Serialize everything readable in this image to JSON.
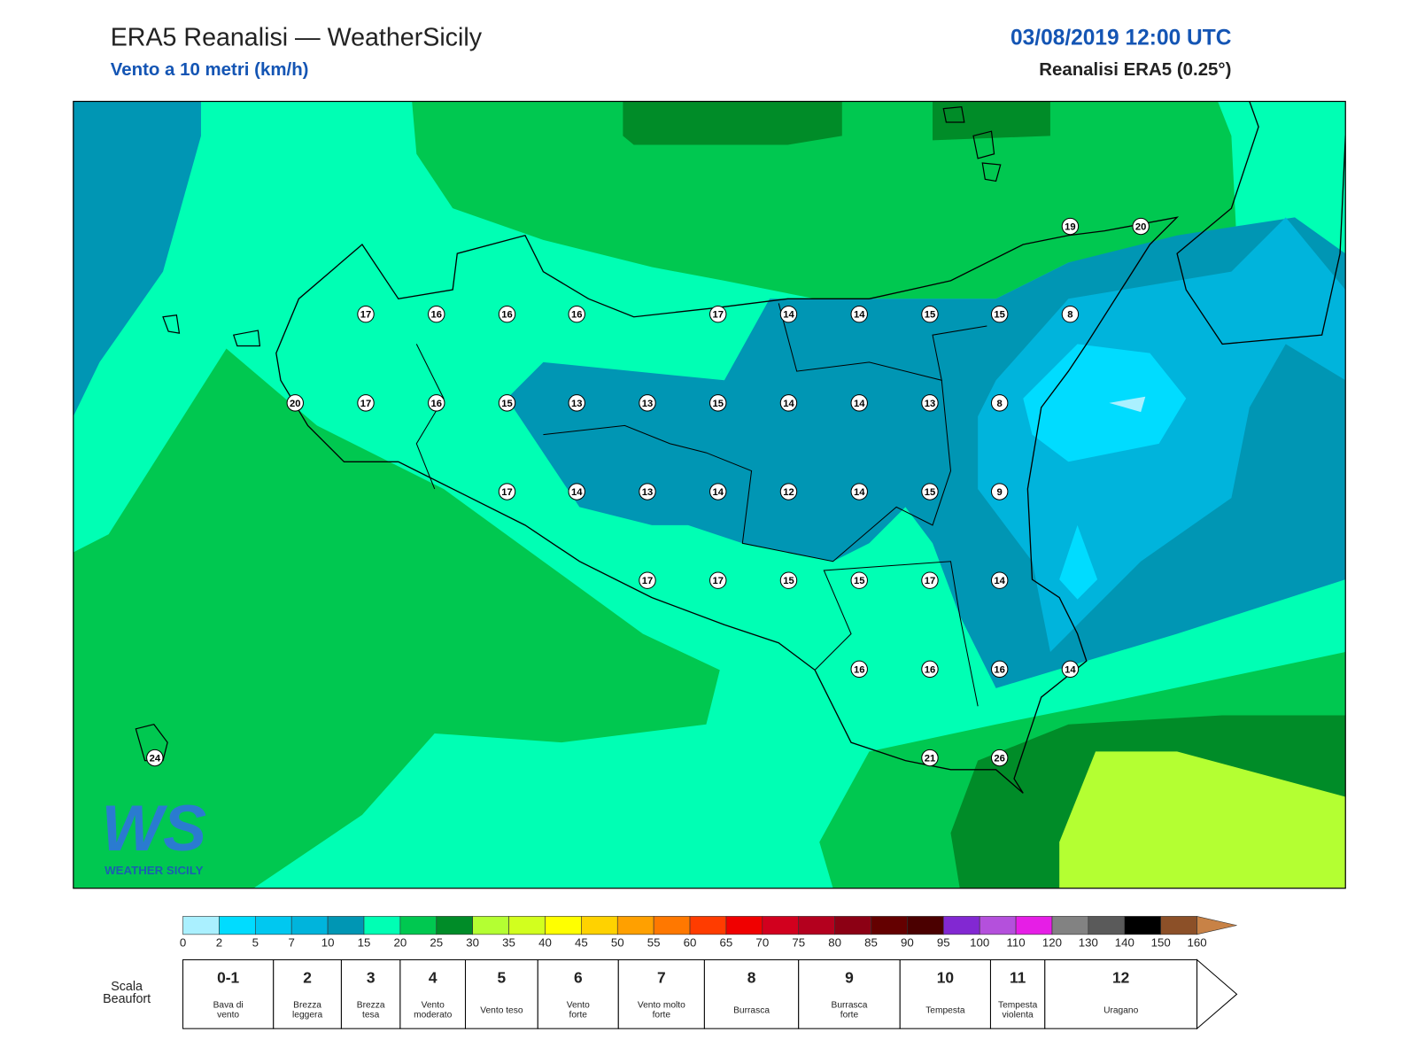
{
  "header": {
    "title": "ERA5 Reanalisi — WeatherSicily",
    "subtitle": "Vento a 10 metri (km/h)",
    "datetime": "03/08/2019 12:00 UTC",
    "source": "Reanalisi ERA5 (0.25°)"
  },
  "stations": [
    17,
    16,
    16,
    16,
    17,
    14,
    14,
    15,
    15,
    8,
    19,
    20,
    20,
    17,
    16,
    15,
    13,
    13,
    15,
    14,
    14,
    13,
    8,
    17,
    14,
    13,
    14,
    12,
    14,
    15,
    9,
    17,
    17,
    15,
    15,
    17,
    14,
    16,
    16,
    16,
    14,
    24,
    21,
    26
  ],
  "logo": {
    "mark": "WS",
    "name": "WEATHER SICILY"
  },
  "colorbar": {
    "ticks": [
      0,
      2,
      5,
      7,
      10,
      15,
      20,
      25,
      30,
      35,
      40,
      45,
      50,
      55,
      60,
      65,
      70,
      75,
      80,
      85,
      90,
      95,
      100,
      110,
      120,
      130,
      140,
      150,
      160
    ],
    "colors": [
      "#aaf0ff",
      "#00dcff",
      "#00c8f0",
      "#00b4dc",
      "#0096b4",
      "#00ffb4",
      "#00c850",
      "#008c28",
      "#b4ff32",
      "#d2ff1e",
      "#ffff00",
      "#ffd200",
      "#ffa000",
      "#ff7800",
      "#ff3c00",
      "#f00000",
      "#d2001e",
      "#b4001e",
      "#8c0014",
      "#640000",
      "#4b0000",
      "#8228d2",
      "#b450dc",
      "#e61ee6",
      "#828282",
      "#5a5a5a",
      "#000000",
      "#8c5028",
      "#c88246"
    ]
  },
  "beaufort": {
    "label": [
      "Scala",
      "Beaufort"
    ],
    "levels": [
      {
        "number": "0-1",
        "desc": [
          "Bava di",
          "vento"
        ]
      },
      {
        "number": "2",
        "desc": [
          "Brezza",
          "leggera"
        ]
      },
      {
        "number": "3",
        "desc": [
          "Brezza",
          "tesa"
        ]
      },
      {
        "number": "4",
        "desc": [
          "Vento",
          "moderato"
        ]
      },
      {
        "number": "5",
        "desc": [
          "Vento teso"
        ]
      },
      {
        "number": "6",
        "desc": [
          "Vento",
          "forte"
        ]
      },
      {
        "number": "7",
        "desc": [
          "Vento molto",
          "forte"
        ]
      },
      {
        "number": "8",
        "desc": [
          "Burrasca"
        ]
      },
      {
        "number": "9",
        "desc": [
          "Burrasca",
          "forte"
        ]
      },
      {
        "number": "10",
        "desc": [
          "Tempesta"
        ]
      },
      {
        "number": "11",
        "desc": [
          "Tempesta",
          "violenta"
        ]
      },
      {
        "number": "12",
        "desc": [
          "Uragano"
        ]
      }
    ]
  }
}
